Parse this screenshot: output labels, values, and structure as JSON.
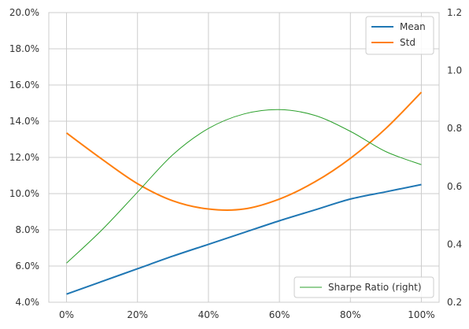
{
  "chart_data": {
    "type": "line",
    "x": [
      0,
      10,
      20,
      30,
      40,
      50,
      60,
      70,
      80,
      90,
      100
    ],
    "x_ticks": [
      0,
      20,
      40,
      60,
      80,
      100
    ],
    "x_tick_labels": [
      "0%",
      "20%",
      "40%",
      "60%",
      "80%",
      "100%"
    ],
    "xlim": [
      -5,
      105
    ],
    "left_axis": {
      "ylim": [
        4.0,
        20.0
      ],
      "ticks": [
        4,
        6,
        8,
        10,
        12,
        14,
        16,
        18,
        20
      ],
      "tick_labels": [
        "4.0%",
        "6.0%",
        "8.0%",
        "10.0%",
        "12.0%",
        "14.0%",
        "16.0%",
        "18.0%",
        "20.0%"
      ]
    },
    "right_axis": {
      "ylim": [
        0.2,
        1.2
      ],
      "ticks": [
        0.2,
        0.4,
        0.6,
        0.8,
        1.0,
        1.2
      ],
      "tick_labels": [
        "0.2",
        "0.4",
        "0.6",
        "0.8",
        "1.0",
        "1.2"
      ]
    },
    "series": [
      {
        "name": "Mean",
        "axis": "left",
        "color": "#1f77b4",
        "values": [
          4.45,
          5.15,
          5.85,
          6.55,
          7.2,
          7.85,
          8.5,
          9.1,
          9.7,
          10.1,
          10.5
        ]
      },
      {
        "name": "Std",
        "axis": "left",
        "color": "#ff7f0e",
        "values": [
          13.35,
          11.9,
          10.55,
          9.6,
          9.15,
          9.15,
          9.7,
          10.65,
          11.95,
          13.6,
          15.6
        ]
      },
      {
        "name": "Sharpe Ratio (right)",
        "axis": "right",
        "color": "#2ca02c",
        "values": [
          0.335,
          0.45,
          0.58,
          0.71,
          0.8,
          0.85,
          0.865,
          0.845,
          0.79,
          0.72,
          0.675
        ]
      }
    ],
    "grid": true,
    "legend_left": {
      "placement": "top-right",
      "entries": [
        "Mean",
        "Std"
      ]
    },
    "legend_right": {
      "placement": "bottom-right",
      "entries": [
        "Sharpe Ratio (right)"
      ]
    }
  }
}
